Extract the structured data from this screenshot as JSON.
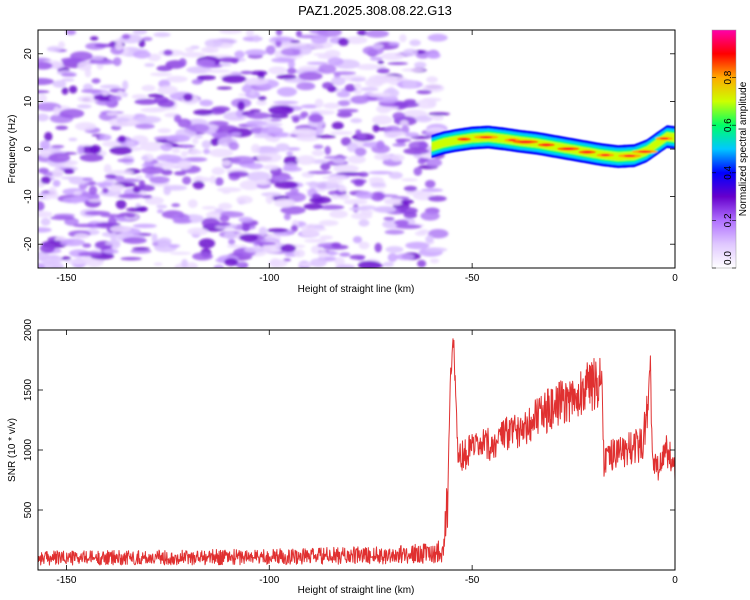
{
  "title": "PAZ1.2025.308.08.22.G13",
  "chart_data": [
    {
      "type": "heatmap",
      "xlabel": "Height of straight line (km)",
      "ylabel": "Frequency (Hz)",
      "xlim": [
        -157,
        0
      ],
      "ylim": [
        -25,
        25
      ],
      "x_ticks": [
        -150,
        -100,
        -50,
        0
      ],
      "y_ticks": [
        -20,
        -10,
        0,
        10,
        20
      ],
      "colorbar": {
        "label": "Normalized spectral amplitude",
        "range": [
          0,
          1
        ],
        "ticks": [
          0.0,
          0.2,
          0.4,
          0.6,
          0.8
        ],
        "colors": [
          "#ffffff",
          "#e0c8ff",
          "#b070ff",
          "#6600cc",
          "#0000ff",
          "#00c8ff",
          "#00ff66",
          "#ccff00",
          "#ffaa00",
          "#ff0000",
          "#ff00aa"
        ]
      },
      "noise_region_x": [
        -157,
        -58
      ],
      "signal_track": {
        "x": [
          -60,
          -57,
          -54,
          -50,
          -46,
          -42,
          -38,
          -34,
          -30,
          -26,
          -22,
          -18,
          -14,
          -10,
          -7,
          -4,
          -2,
          0
        ],
        "y": [
          0.5,
          1.3,
          1.8,
          2.3,
          2.5,
          2.1,
          1.6,
          1.2,
          0.6,
          0.0,
          -0.6,
          -1.2,
          -1.6,
          -1.4,
          -0.4,
          1.4,
          2.6,
          2.4
        ]
      }
    },
    {
      "type": "line",
      "xlabel": "Height of straight line (km)",
      "ylabel": "SNR (10 * v/v)",
      "xlim": [
        -157,
        0
      ],
      "ylim": [
        0,
        2000
      ],
      "x_ticks": [
        -150,
        -100,
        -50,
        0
      ],
      "y_ticks": [
        500,
        1000,
        1500,
        2000
      ],
      "line_color": "#e03030",
      "profile": {
        "x": [
          -157,
          -120,
          -90,
          -70,
          -60,
          -57,
          -56,
          -55.5,
          -54.7,
          -54,
          -53.5,
          -50,
          -45,
          -40,
          -35,
          -30,
          -25,
          -20,
          -18,
          -17.5,
          -16,
          -12,
          -8,
          -6,
          -5.5,
          -4,
          -2,
          0
        ],
        "y": [
          100,
          105,
          115,
          125,
          140,
          170,
          600,
          1450,
          2000,
          1450,
          950,
          1000,
          1050,
          1150,
          1250,
          1350,
          1450,
          1550,
          1600,
          900,
          950,
          1000,
          1050,
          1600,
          900,
          850,
          1000,
          850
        ]
      }
    }
  ]
}
